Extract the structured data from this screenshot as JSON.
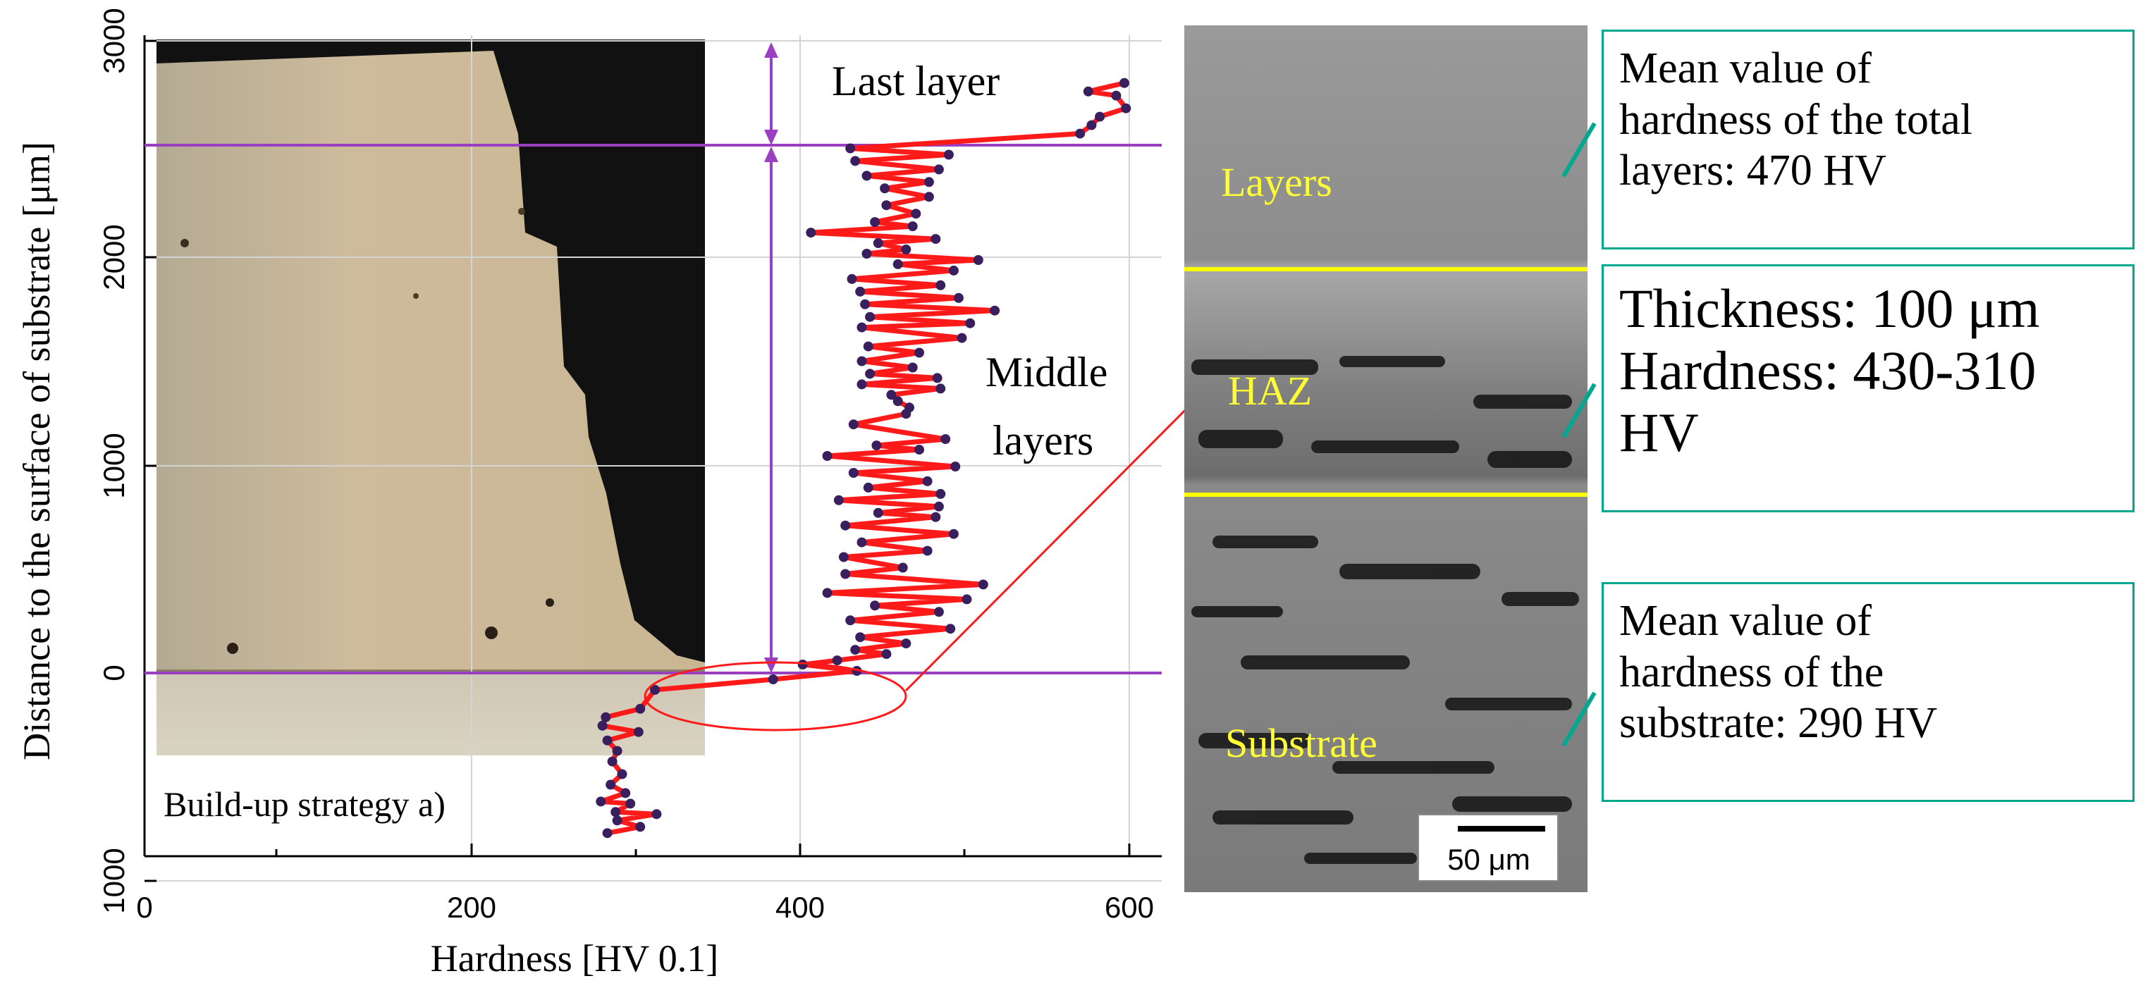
{
  "chart_data": {
    "type": "line",
    "xlabel": "Hardness [HV 0.1]",
    "ylabel": "Distance to the surface of substrate [μm]",
    "xlim": [
      0,
      620
    ],
    "ylim": [
      -900,
      3000
    ],
    "x_ticks": [
      {
        "value": 0,
        "label": "0"
      },
      {
        "value": 200,
        "label": "200"
      },
      {
        "value": 400,
        "label": "400"
      },
      {
        "value": 600,
        "label": "600"
      }
    ],
    "y_ticks": [
      {
        "value": 3000,
        "label": "3000"
      },
      {
        "value": 2000,
        "label": "2000"
      },
      {
        "value": 1000,
        "label": "1000"
      },
      {
        "value": 0,
        "label": "0"
      },
      {
        "value": -1000,
        "label": "1000"
      }
    ],
    "grid": true,
    "series": [
      {
        "name": "Hardness profile",
        "color": "#ff1a1a",
        "marker_color": "#3a1f5e",
        "points": [
          [
            597,
            2800
          ],
          [
            575,
            2760
          ],
          [
            592,
            2740
          ],
          [
            598,
            2680
          ],
          [
            582,
            2640
          ],
          [
            577,
            2600
          ],
          [
            570,
            2560
          ],
          [
            430,
            2490
          ],
          [
            490,
            2460
          ],
          [
            433,
            2430
          ],
          [
            484,
            2390
          ],
          [
            440,
            2360
          ],
          [
            478,
            2330
          ],
          [
            451,
            2300
          ],
          [
            478,
            2260
          ],
          [
            452,
            2220
          ],
          [
            470,
            2180
          ],
          [
            445,
            2140
          ],
          [
            468,
            2120
          ],
          [
            406,
            2090
          ],
          [
            482,
            2060
          ],
          [
            447,
            2040
          ],
          [
            464,
            2010
          ],
          [
            440,
            1990
          ],
          [
            508,
            1960
          ],
          [
            459,
            1940
          ],
          [
            493,
            1910
          ],
          [
            431,
            1870
          ],
          [
            485,
            1840
          ],
          [
            436,
            1810
          ],
          [
            496,
            1780
          ],
          [
            439,
            1750
          ],
          [
            518,
            1720
          ],
          [
            442,
            1690
          ],
          [
            503,
            1660
          ],
          [
            437,
            1640
          ],
          [
            498,
            1590
          ],
          [
            441,
            1550
          ],
          [
            472,
            1520
          ],
          [
            437,
            1480
          ],
          [
            468,
            1450
          ],
          [
            442,
            1420
          ],
          [
            483,
            1400
          ],
          [
            437,
            1370
          ],
          [
            485,
            1350
          ],
          [
            455,
            1320
          ],
          [
            459,
            1290
          ],
          [
            466,
            1260
          ],
          [
            464,
            1230
          ],
          [
            432,
            1180
          ],
          [
            488,
            1110
          ],
          [
            446,
            1080
          ],
          [
            472,
            1060
          ],
          [
            416,
            1030
          ],
          [
            494,
            980
          ],
          [
            432,
            950
          ],
          [
            477,
            910
          ],
          [
            441,
            880
          ],
          [
            485,
            850
          ],
          [
            423,
            820
          ],
          [
            484,
            790
          ],
          [
            447,
            760
          ],
          [
            482,
            740
          ],
          [
            427,
            700
          ],
          [
            493,
            660
          ],
          [
            437,
            620
          ],
          [
            477,
            580
          ],
          [
            426,
            550
          ],
          [
            462,
            500
          ],
          [
            427,
            470
          ],
          [
            511,
            420
          ],
          [
            416,
            380
          ],
          [
            501,
            350
          ],
          [
            445,
            320
          ],
          [
            484,
            290
          ],
          [
            430,
            250
          ],
          [
            491,
            210
          ],
          [
            436,
            170
          ],
          [
            464,
            140
          ],
          [
            433,
            110
          ],
          [
            452,
            90
          ],
          [
            422,
            60
          ],
          [
            401,
            40
          ],
          [
            434,
            10
          ],
          [
            383,
            -30
          ],
          [
            311,
            -80
          ],
          [
            302,
            -170
          ],
          [
            281,
            -210
          ],
          [
            279,
            -250
          ],
          [
            301,
            -280
          ],
          [
            282,
            -320
          ],
          [
            288,
            -370
          ],
          [
            285,
            -420
          ],
          [
            291,
            -480
          ],
          [
            284,
            -530
          ],
          [
            293,
            -570
          ],
          [
            278,
            -610
          ],
          [
            296,
            -620
          ],
          [
            287,
            -660
          ],
          [
            312,
            -670
          ],
          [
            288,
            -700
          ],
          [
            302,
            -730
          ],
          [
            282,
            -760
          ]
        ]
      }
    ],
    "annotations": {
      "last_layer": "Last layer",
      "middle_layers_line1": "Middle",
      "middle_layers_line2": "layers",
      "build_up": "Build-up strategy a)"
    },
    "reference_lines_y": [
      0,
      2520
    ]
  },
  "micrograph": {
    "labels": {
      "layers": "Layers",
      "haz": "HAZ",
      "substrate": "Substrate"
    },
    "scale_bar": "50 μm"
  },
  "callouts": [
    {
      "lines": [
        "Mean value of",
        "hardness of the total",
        "layers: 470 HV"
      ]
    },
    {
      "lines": [
        "Thickness: 100 μm",
        "Hardness: 430-310",
        "HV"
      ]
    },
    {
      "lines": [
        "Mean value of",
        "hardness of the",
        "substrate: 290 HV"
      ]
    }
  ],
  "colors": {
    "series_line": "#ff1a1a",
    "marker": "#3a1f5e",
    "guide_lines": "#9b3fc2",
    "micro_labels": "#ffff33",
    "micro_boundaries": "#ffff00",
    "callout_border": "#00a88f",
    "ellipse": "#ff1a1a"
  }
}
